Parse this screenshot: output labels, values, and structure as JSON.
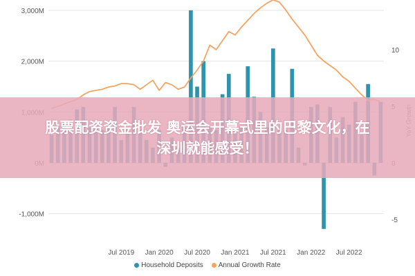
{
  "banner": {
    "line1": "股票配资资金批发 奥运会开幕式里的巴黎文化，在",
    "line2": "深圳就能感受！"
  },
  "chart_data": {
    "type": "bar",
    "title": "",
    "xlabel": "",
    "ylabel": "",
    "y2label": "YoY Growth",
    "ylim": [
      -1500,
      3100
    ],
    "y2lim": [
      -7,
      18
    ],
    "yticks": [
      "3,000M",
      "2,000M",
      "1,000M",
      "0M",
      "-1,000M"
    ],
    "ytick_values": [
      3000,
      2000,
      1000,
      0,
      -1000
    ],
    "y2ticks": [
      "10",
      "5",
      "0",
      "-5"
    ],
    "y2tick_values": [
      10,
      5,
      0,
      -5
    ],
    "x_tick_labels": [
      "Jul 2019",
      "Jan 2020",
      "Jul 2020",
      "Jan 2021",
      "Jul 2021",
      "Jan 2022",
      "Jul 2022"
    ],
    "x_tick_months": [
      11,
      17,
      23,
      29,
      35,
      41,
      47
    ],
    "months": 53,
    "grid": true,
    "legend_position": "bottom",
    "series": [
      {
        "name": "Household Deposits",
        "kind": "bar",
        "axis": "left",
        "color": "#2e93ad",
        "values": [
          550,
          750,
          800,
          850,
          1050,
          1100,
          700,
          750,
          650,
          750,
          1100,
          450,
          650,
          1100,
          650,
          450,
          300,
          650,
          -80,
          500,
          300,
          700,
          3000,
          1500,
          2000,
          700,
          650,
          1350,
          1750,
          650,
          700,
          1900,
          1300,
          1000,
          700,
          2250,
          650,
          650,
          1850,
          300,
          -50,
          1100,
          1150,
          -1300,
          1100,
          500,
          900,
          750,
          1200,
          550,
          1550,
          -250,
          1200
        ]
      },
      {
        "name": "Annual Growth Rate",
        "kind": "line",
        "axis": "right",
        "color": "#f4a460",
        "values": [
          4.8,
          5.0,
          5.2,
          5.4,
          5.6,
          6.0,
          6.3,
          6.4,
          6.5,
          6.7,
          6.8,
          7.0,
          7.0,
          6.9,
          6.5,
          6.9,
          7.3,
          6.4,
          7.1,
          6.9,
          6.5,
          6.7,
          7.5,
          8.2,
          9.0,
          10.4,
          10.0,
          10.8,
          11.6,
          11.3,
          12.0,
          12.6,
          13.2,
          13.7,
          14.1,
          14.4,
          14.2,
          13.5,
          12.7,
          12.0,
          11.3,
          10.4,
          9.5,
          9.0,
          8.6,
          8.2,
          7.6,
          7.2,
          6.6,
          6.0,
          5.5,
          5.6,
          5.4
        ]
      }
    ]
  }
}
